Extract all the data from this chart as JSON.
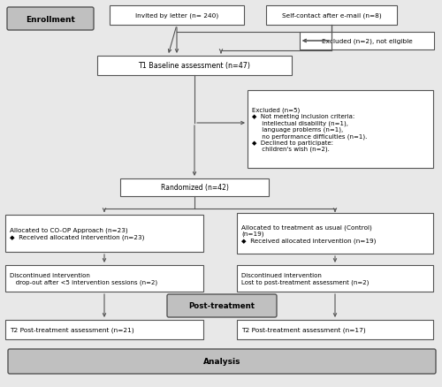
{
  "bg_color": "#e8e8e8",
  "box_bg": "#ffffff",
  "label_bg": "#c0c0c0",
  "edge_color": "#555555",
  "arrow_color": "#555555",
  "enrollment_label": "Enrollment",
  "post_treatment_label": "Post-treatment",
  "analysis_label": "Analysis",
  "boxes": {
    "invited": "Invited by letter (n= 240)",
    "self_contact": "Self-contact after e-mail (n=8)",
    "excluded_top": "Excluded (n=2), not eligible",
    "t1": "T1 Baseline assessment (n=47)",
    "excluded_mid": "Excluded (n=5)\n◆  Not meeting inclusion criteria:\n     intellectual disability (n=1),\n     language problems (n=1),\n     no performance difficulties (n=1).\n◆  Declined to participate:\n     children's wish (n=2).",
    "randomized": "Randomized (n=42)",
    "alloc_coop": "Allocated to CO-OP Approach (n=23)\n◆  Received allocated intervention (n=23)",
    "alloc_control": "Allocated to treatment as usual (Control)\n(n=19)\n◆  Received allocated intervention (n=19)",
    "discont_coop": "Discontinued intervention\n   drop-out after <5 intervention sessions (n=2)",
    "discont_control": "Discontinued intervention\nLost to post-treatment assessment (n=2)",
    "t2_coop": "T2 Post-treatment assessment (n=21)",
    "t2_control": "T2 Post-treatment assessment (n=17)"
  }
}
